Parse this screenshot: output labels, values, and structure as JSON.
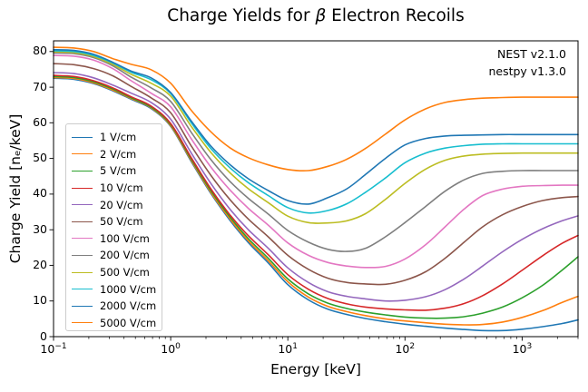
{
  "title": {
    "pre": "Charge Yields for ",
    "beta": "β",
    "post": " Electron Recoils"
  },
  "annotation": {
    "line1": "NEST v2.1.0",
    "line2": "nestpy v1.3.0"
  },
  "chart_data": {
    "type": "line",
    "title": "Charge Yields for β Electron Recoils",
    "xlabel": "Energy [keV]",
    "ylabel": "Charge Yield [nₑ/keV]",
    "x_scale": "log",
    "xlim": [
      0.1,
      3000
    ],
    "ylim": [
      0,
      83
    ],
    "y_ticks": [
      0,
      10,
      20,
      30,
      40,
      50,
      60,
      70,
      80
    ],
    "x_tick_exponents": [
      -1,
      0,
      1,
      2,
      3
    ],
    "grid": false,
    "legend_position": "center left inside",
    "x_keV": [
      0.1,
      0.15,
      0.22,
      0.32,
      0.46,
      0.68,
      1,
      1.5,
      2.2,
      3.2,
      4.6,
      6.8,
      10,
      15,
      22,
      32,
      46,
      68,
      100,
      150,
      220,
      320,
      460,
      680,
      1000,
      1500,
      2200,
      3000
    ],
    "series": [
      {
        "label": "1 V/cm",
        "color": "#1f77b4",
        "values": [
          72.5,
          72.2,
          71.0,
          69.0,
          66.6,
          64.0,
          59.0,
          49.1,
          40.2,
          32.7,
          26.4,
          20.7,
          14.6,
          10.3,
          7.7,
          6.2,
          5.1,
          4.2,
          3.5,
          2.9,
          2.4,
          2.0,
          1.7,
          1.7,
          2.1,
          2.8,
          3.7,
          4.7
        ]
      },
      {
        "label": "2 V/cm",
        "color": "#ff7f0e",
        "values": [
          72.7,
          72.4,
          71.2,
          69.2,
          66.8,
          64.2,
          59.2,
          49.4,
          40.5,
          33.1,
          26.9,
          21.3,
          15.4,
          11.1,
          8.5,
          7.0,
          5.9,
          5.0,
          4.4,
          3.9,
          3.5,
          3.3,
          3.4,
          4.1,
          5.4,
          7.3,
          9.6,
          11.3
        ]
      },
      {
        "label": "5 V/cm",
        "color": "#2ca02c",
        "values": [
          73.0,
          72.7,
          71.5,
          69.5,
          67.0,
          64.4,
          59.5,
          49.8,
          41.0,
          33.6,
          27.5,
          22.0,
          16.2,
          12.0,
          9.4,
          7.9,
          6.9,
          6.1,
          5.5,
          5.2,
          5.2,
          5.6,
          6.6,
          8.3,
          10.9,
          14.4,
          18.7,
          22.4
        ]
      },
      {
        "label": "10 V/cm",
        "color": "#d62728",
        "values": [
          73.3,
          73.0,
          71.8,
          69.8,
          67.3,
          64.7,
          59.8,
          50.2,
          41.5,
          34.2,
          28.3,
          23.0,
          17.4,
          13.3,
          10.7,
          9.2,
          8.3,
          7.8,
          7.5,
          7.4,
          8.0,
          9.3,
          11.5,
          14.8,
          18.6,
          22.7,
          26.2,
          28.4
        ]
      },
      {
        "label": "20 V/cm",
        "color": "#9467bd",
        "values": [
          74.1,
          73.8,
          72.6,
          70.6,
          68.3,
          65.7,
          61.0,
          51.5,
          43.0,
          35.8,
          30.0,
          24.8,
          19.3,
          15.2,
          12.6,
          11.3,
          10.6,
          10.0,
          10.2,
          11.2,
          13.2,
          16.2,
          19.8,
          23.8,
          27.3,
          30.3,
          32.5,
          33.9
        ]
      },
      {
        "label": "50 V/cm",
        "color": "#8c564b",
        "values": [
          76.6,
          76.3,
          75.2,
          73.2,
          70.2,
          67.0,
          62.8,
          53.5,
          45.3,
          38.5,
          33.0,
          28.0,
          22.8,
          18.9,
          16.4,
          15.2,
          14.8,
          14.7,
          15.8,
          18.2,
          22.0,
          26.5,
          30.8,
          34.2,
          36.5,
          38.2,
          39.0,
          39.3
        ]
      },
      {
        "label": "100 V/cm",
        "color": "#e377c2",
        "values": [
          78.9,
          78.7,
          77.6,
          75.2,
          71.8,
          68.3,
          64.5,
          55.5,
          47.6,
          41.2,
          36.0,
          31.3,
          26.3,
          22.8,
          20.8,
          19.8,
          19.4,
          19.7,
          21.8,
          25.8,
          30.8,
          35.8,
          39.6,
          41.4,
          42.2,
          42.4,
          42.5,
          42.5
        ]
      },
      {
        "label": "200 V/cm",
        "color": "#7f7f7f",
        "values": [
          79.6,
          79.4,
          78.3,
          76.0,
          72.8,
          69.8,
          66.0,
          57.3,
          49.7,
          43.6,
          38.8,
          34.4,
          29.8,
          26.5,
          24.5,
          23.9,
          24.8,
          28.0,
          32.0,
          36.5,
          40.8,
          44.0,
          45.8,
          46.4,
          46.6,
          46.6,
          46.6,
          46.6
        ]
      },
      {
        "label": "500 V/cm",
        "color": "#bcbd22",
        "values": [
          79.9,
          79.7,
          78.6,
          76.4,
          73.6,
          71.1,
          67.5,
          59.0,
          51.7,
          46.0,
          41.5,
          37.6,
          33.8,
          32.0,
          31.9,
          32.5,
          34.5,
          38.5,
          43.0,
          47.0,
          49.5,
          50.7,
          51.2,
          51.4,
          51.5,
          51.5,
          51.5,
          51.5
        ]
      },
      {
        "label": "1000 V/cm",
        "color": "#17becf",
        "values": [
          80.2,
          80.0,
          78.9,
          76.8,
          74.2,
          72.1,
          68.2,
          60.0,
          52.8,
          47.4,
          43.2,
          39.6,
          36.2,
          34.7,
          35.4,
          37.3,
          40.5,
          44.5,
          48.8,
          51.5,
          52.9,
          53.6,
          54.0,
          54.1,
          54.1,
          54.1,
          54.1,
          54.1
        ]
      },
      {
        "label": "2000 V/cm",
        "color": "#1f77b4",
        "values": [
          80.5,
          80.3,
          79.2,
          77.0,
          74.5,
          72.6,
          68.5,
          60.5,
          53.5,
          48.3,
          44.3,
          41.0,
          38.2,
          37.2,
          39.0,
          41.5,
          45.5,
          50.0,
          53.8,
          55.6,
          56.3,
          56.5,
          56.6,
          56.7,
          56.7,
          56.7,
          56.7,
          56.7
        ]
      },
      {
        "label": "5000 V/cm",
        "color": "#ff7f0e",
        "values": [
          81.2,
          81.0,
          80.0,
          78.0,
          76.4,
          74.9,
          71.1,
          63.5,
          57.5,
          53.0,
          50.2,
          48.2,
          46.9,
          46.6,
          47.8,
          49.8,
          52.8,
          56.8,
          60.8,
          63.9,
          65.7,
          66.5,
          66.9,
          67.1,
          67.2,
          67.2,
          67.2,
          67.2
        ]
      }
    ]
  }
}
